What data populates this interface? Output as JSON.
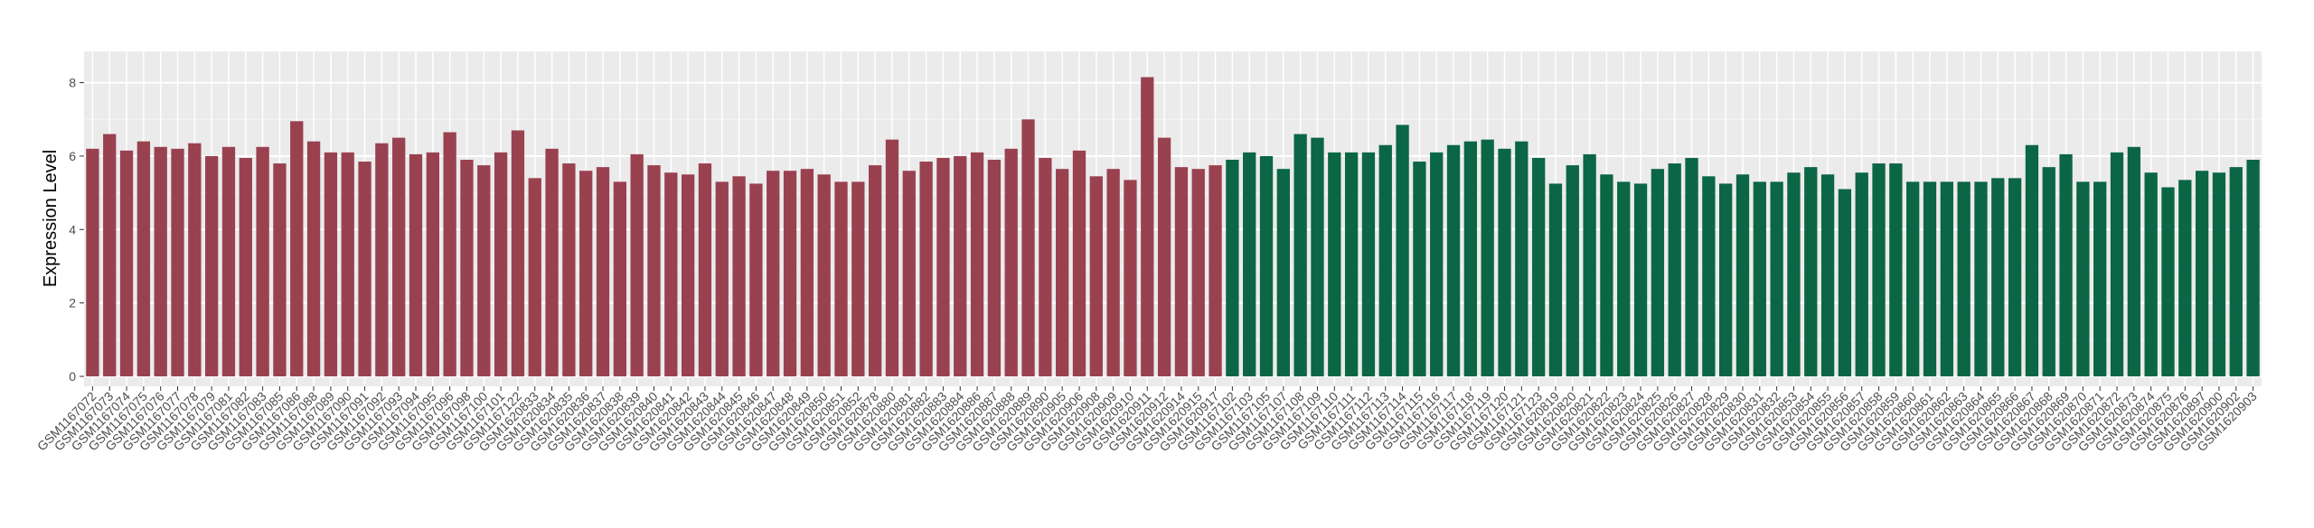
{
  "chart_data": {
    "type": "bar",
    "y_label": "Expression Level",
    "categories": [
      "GSM1167072",
      "GSM1167073",
      "GSM1167074",
      "GSM1167075",
      "GSM1167076",
      "GSM1167077",
      "GSM1167078",
      "GSM1167079",
      "GSM1167081",
      "GSM1167082",
      "GSM1167083",
      "GSM1167085",
      "GSM1167086",
      "GSM1167088",
      "GSM1167089",
      "GSM1167090",
      "GSM1167091",
      "GSM1167092",
      "GSM1167093",
      "GSM1167094",
      "GSM1167095",
      "GSM1167096",
      "GSM1167098",
      "GSM1167100",
      "GSM1167101",
      "GSM1167122",
      "GSM1620833",
      "GSM1620834",
      "GSM1620835",
      "GSM1620836",
      "GSM1620837",
      "GSM1620838",
      "GSM1620839",
      "GSM1620840",
      "GSM1620841",
      "GSM1620842",
      "GSM1620843",
      "GSM1620844",
      "GSM1620845",
      "GSM1620846",
      "GSM1620847",
      "GSM1620848",
      "GSM1620849",
      "GSM1620850",
      "GSM1620851",
      "GSM1620852",
      "GSM1620878",
      "GSM1620880",
      "GSM1620881",
      "GSM1620882",
      "GSM1620883",
      "GSM1620884",
      "GSM1620886",
      "GSM1620887",
      "GSM1620888",
      "GSM1620889",
      "GSM1620890",
      "GSM1620905",
      "GSM1620906",
      "GSM1620908",
      "GSM1620909",
      "GSM1620910",
      "GSM1620911",
      "GSM1620912",
      "GSM1620914",
      "GSM1620915",
      "GSM1620917",
      "GSM1167102",
      "GSM1167103",
      "GSM1167105",
      "GSM1167107",
      "GSM1167108",
      "GSM1167109",
      "GSM1167110",
      "GSM1167111",
      "GSM1167112",
      "GSM1167113",
      "GSM1167114",
      "GSM1167115",
      "GSM1167116",
      "GSM1167117",
      "GSM1167118",
      "GSM1167119",
      "GSM1167120",
      "GSM1167121",
      "GSM1167123",
      "GSM1620819",
      "GSM1620820",
      "GSM1620821",
      "GSM1620822",
      "GSM1620823",
      "GSM1620824",
      "GSM1620825",
      "GSM1620826",
      "GSM1620827",
      "GSM1620828",
      "GSM1620829",
      "GSM1620830",
      "GSM1620831",
      "GSM1620832",
      "GSM1620853",
      "GSM1620854",
      "GSM1620855",
      "GSM1620856",
      "GSM1620857",
      "GSM1620858",
      "GSM1620859",
      "GSM1620860",
      "GSM1620861",
      "GSM1620862",
      "GSM1620863",
      "GSM1620864",
      "GSM1620865",
      "GSM1620866",
      "GSM1620867",
      "GSM1620868",
      "GSM1620869",
      "GSM1620870",
      "GSM1620871",
      "GSM1620872",
      "GSM1620873",
      "GSM1620874",
      "GSM1620875",
      "GSM1620876",
      "GSM1620897",
      "GSM1620900",
      "GSM1620902",
      "GSM1620903"
    ],
    "series": [
      {
        "color": "#9a4150",
        "values": [
          6.2,
          6.6,
          6.15,
          6.4,
          6.25,
          6.2,
          6.35,
          6.0,
          6.25,
          5.95,
          6.25,
          5.8,
          6.95,
          6.4,
          6.1,
          6.1,
          5.85,
          6.35,
          6.5,
          6.05,
          6.1,
          6.65,
          5.9,
          5.75,
          6.1,
          6.7,
          5.4,
          6.2,
          5.8,
          5.6,
          5.7,
          5.3,
          6.05,
          5.75,
          5.55,
          5.5,
          5.8,
          5.3,
          5.45,
          5.25,
          5.6,
          5.6,
          5.65,
          5.5,
          5.3,
          5.3,
          5.75,
          6.45,
          5.6,
          5.85,
          5.95,
          6.0,
          6.1,
          5.9,
          6.2,
          7.0,
          5.95,
          5.65,
          6.15,
          5.45,
          5.65,
          5.35,
          8.15,
          6.5,
          5.7,
          5.65,
          5.75,
          null,
          null,
          null,
          null,
          null,
          null,
          null,
          null,
          null,
          null,
          null,
          null,
          null,
          null,
          null,
          null,
          null,
          null,
          null,
          null,
          null,
          null,
          null,
          null,
          null,
          null,
          null,
          null,
          null,
          null,
          null,
          null,
          null,
          null,
          null,
          null,
          null,
          null,
          null,
          null,
          null,
          null,
          null,
          null,
          null,
          null,
          null,
          null,
          null,
          null,
          null,
          null,
          null,
          null,
          null,
          null,
          null,
          null,
          null,
          null,
          null
        ]
      },
      {
        "color": "#0b6645",
        "values": [
          null,
          null,
          null,
          null,
          null,
          null,
          null,
          null,
          null,
          null,
          null,
          null,
          null,
          null,
          null,
          null,
          null,
          null,
          null,
          null,
          null,
          null,
          null,
          null,
          null,
          null,
          null,
          null,
          null,
          null,
          null,
          null,
          null,
          null,
          null,
          null,
          null,
          null,
          null,
          null,
          null,
          null,
          null,
          null,
          null,
          null,
          null,
          null,
          null,
          null,
          null,
          null,
          null,
          null,
          null,
          null,
          null,
          null,
          null,
          null,
          null,
          null,
          null,
          null,
          null,
          null,
          null,
          5.9,
          6.1,
          6.0,
          5.65,
          6.6,
          6.5,
          6.1,
          6.1,
          6.1,
          6.3,
          6.85,
          5.85,
          6.1,
          6.3,
          6.4,
          6.45,
          6.2,
          6.4,
          5.95,
          5.25,
          5.75,
          6.05,
          5.5,
          5.3,
          5.25,
          5.65,
          5.8,
          5.95,
          5.45,
          5.25,
          5.5,
          5.3,
          5.3,
          5.55,
          5.7,
          5.5,
          5.1,
          5.55,
          5.8,
          5.8,
          5.3,
          5.3,
          5.3,
          5.3,
          5.3,
          5.4,
          5.4,
          6.3,
          5.7,
          6.05,
          5.3,
          5.3,
          6.1,
          6.25,
          5.55,
          5.15,
          5.35,
          5.6,
          5.55,
          5.7,
          5.9
        ]
      }
    ],
    "ylim": [
      -0.27,
      8.85
    ],
    "yticks": [
      0,
      2,
      4,
      6,
      8
    ],
    "grid": true
  }
}
